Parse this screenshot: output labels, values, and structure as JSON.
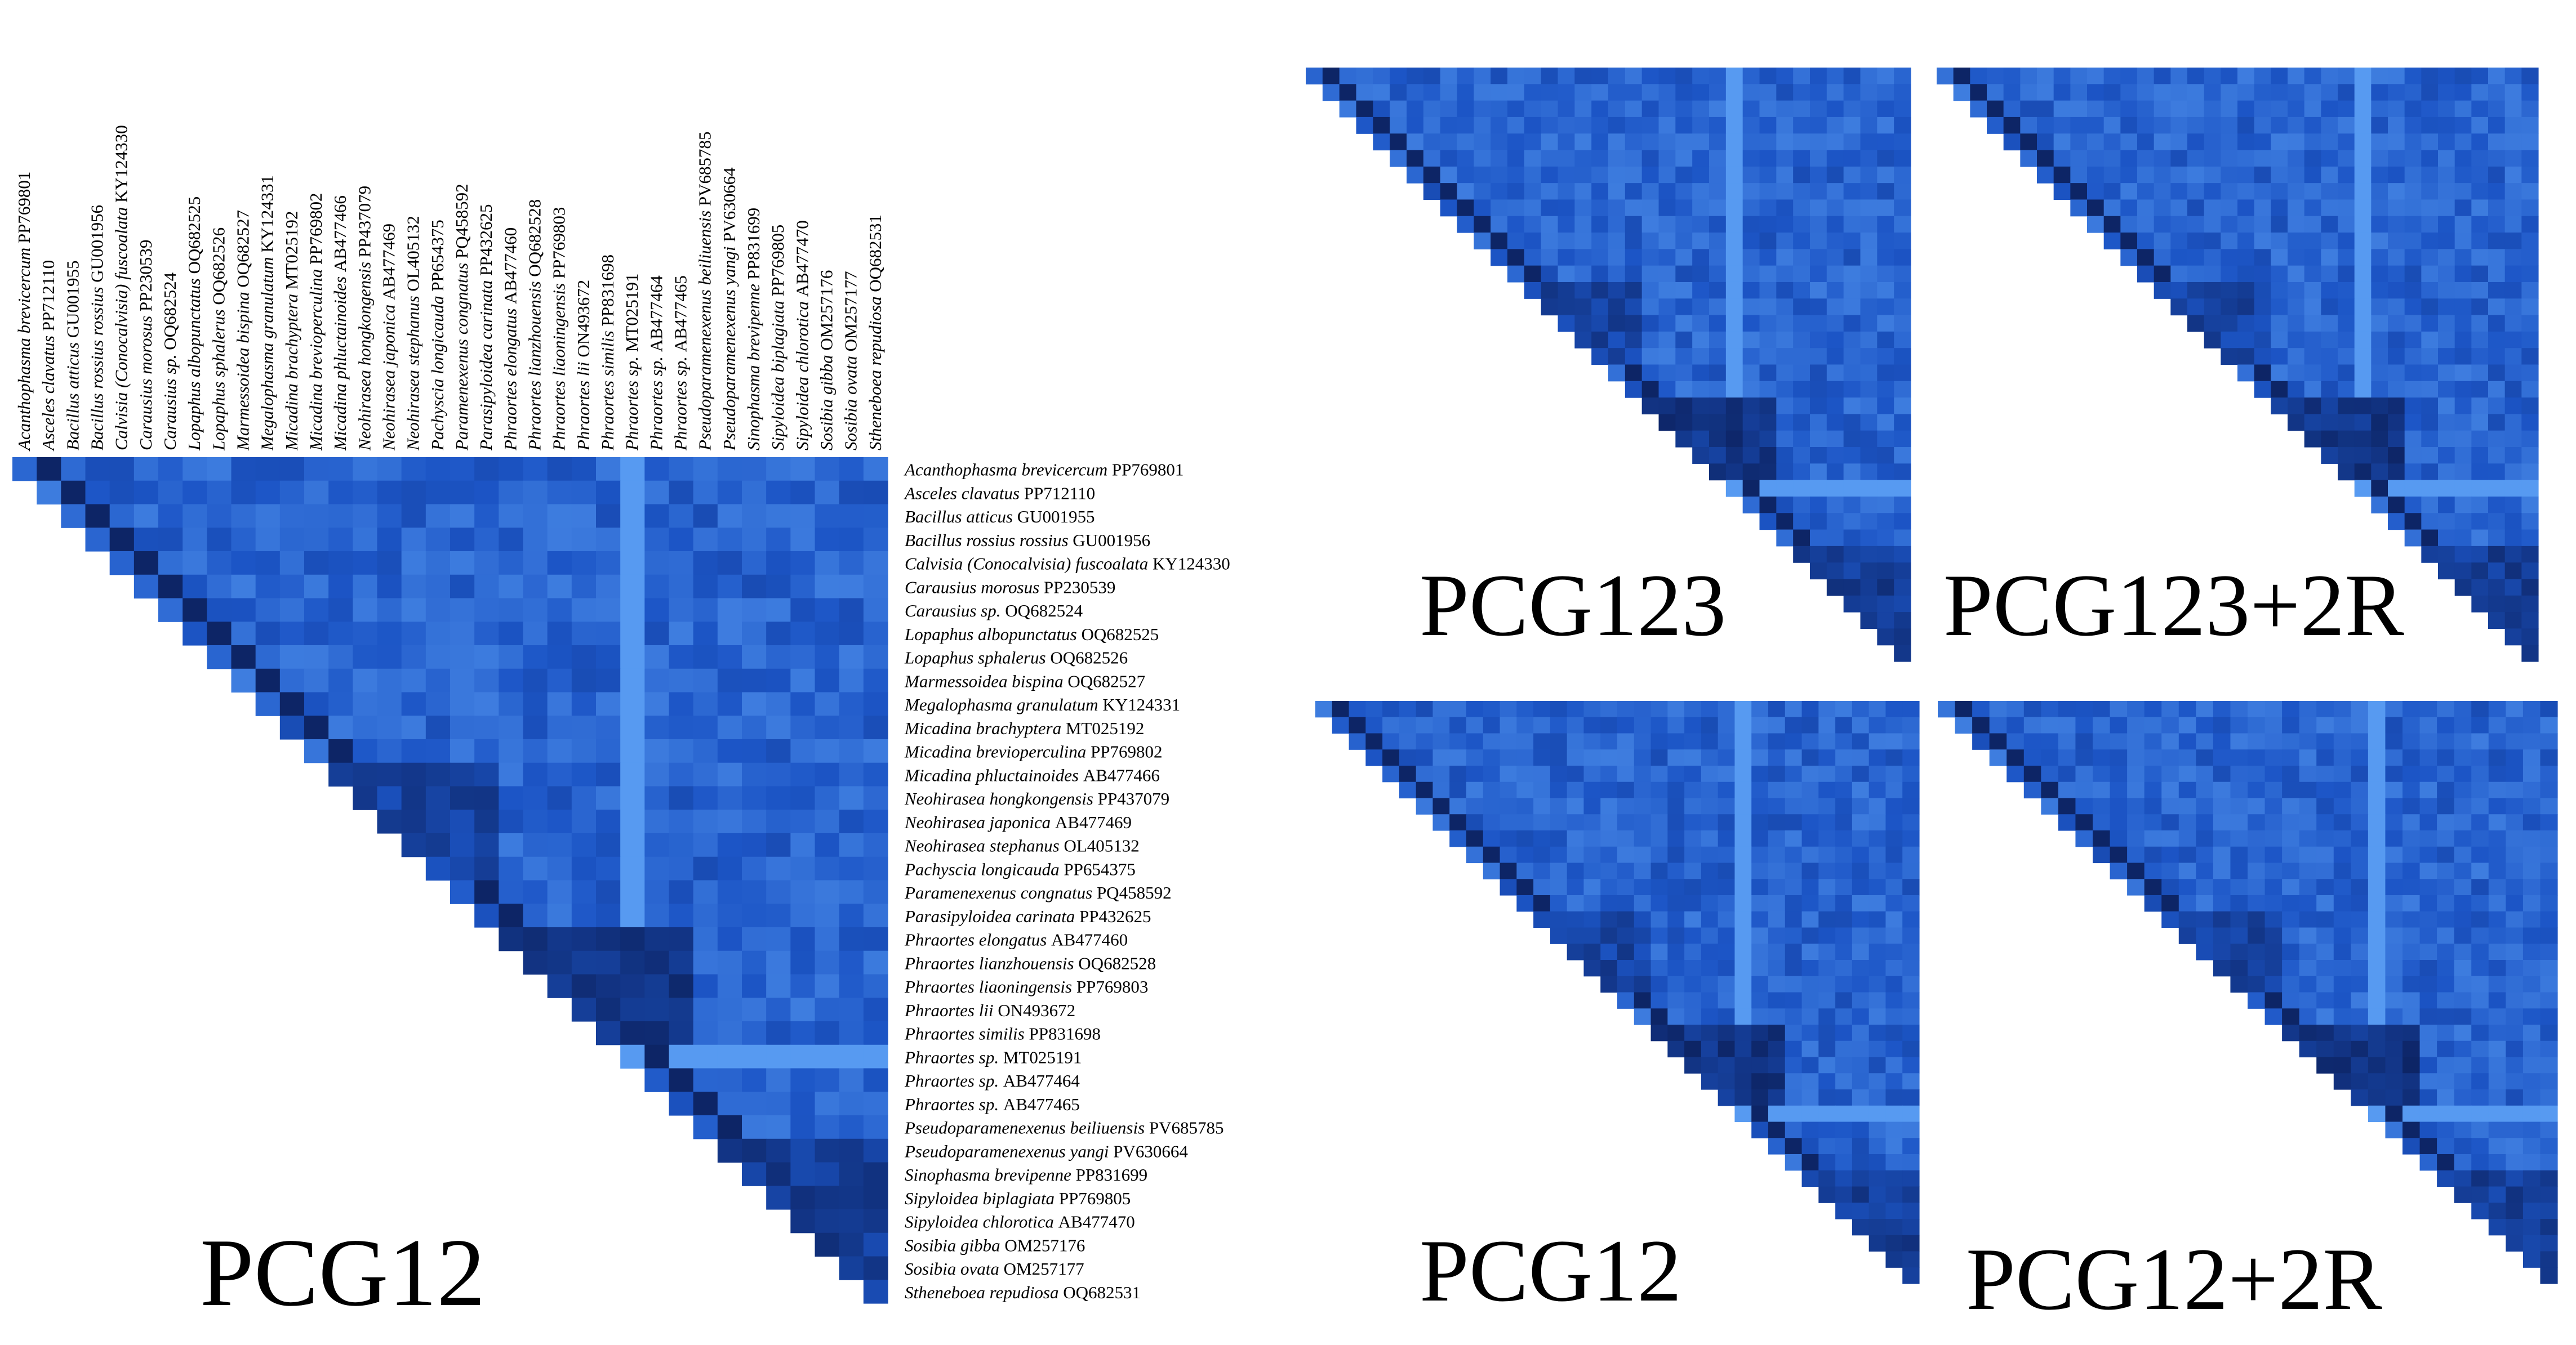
{
  "chart_data": [
    {
      "type": "heatmap",
      "label": "PCG12",
      "taxa": [
        {
          "name": "Acanthophasma brevicercum",
          "acc": "PP769801"
        },
        {
          "name": "Asceles clavatus",
          "acc": "PP712110"
        },
        {
          "name": "Bacillus atticus",
          "acc": "GU001955"
        },
        {
          "name": "Bacillus rossius rossius",
          "acc": "GU001956"
        },
        {
          "name": "Calvisia (Conocalvisia) fuscoalata",
          "acc": "KY124330"
        },
        {
          "name": "Carausius morosus",
          "acc": "PP230539"
        },
        {
          "name": "Carausius sp.",
          "acc": "OQ682524"
        },
        {
          "name": "Lopaphus albopunctatus",
          "acc": "OQ682525"
        },
        {
          "name": "Lopaphus sphalerus",
          "acc": "OQ682526"
        },
        {
          "name": "Marmessoidea bispina",
          "acc": "OQ682527"
        },
        {
          "name": "Megalophasma granulatum",
          "acc": "KY124331"
        },
        {
          "name": "Micadina brachyptera",
          "acc": "MT025192"
        },
        {
          "name": "Micadina brevioperculina",
          "acc": "PP769802"
        },
        {
          "name": "Micadina phluctainoides",
          "acc": "AB477466"
        },
        {
          "name": "Neohirasea hongkongensis",
          "acc": "PP437079"
        },
        {
          "name": "Neohirasea japonica",
          "acc": "AB477469"
        },
        {
          "name": "Neohirasea stephanus",
          "acc": "OL405132"
        },
        {
          "name": "Pachyscia longicauda",
          "acc": "PP654375"
        },
        {
          "name": "Paramenexenus congnatus",
          "acc": "PQ458592"
        },
        {
          "name": "Parasipyloidea carinata",
          "acc": "PP432625"
        },
        {
          "name": "Phraortes elongatus",
          "acc": "AB477460"
        },
        {
          "name": "Phraortes lianzhouensis",
          "acc": "OQ682528"
        },
        {
          "name": "Phraortes liaoningensis",
          "acc": "PP769803"
        },
        {
          "name": "Phraortes lii",
          "acc": "ON493672"
        },
        {
          "name": "Phraortes similis",
          "acc": "PP831698"
        },
        {
          "name": "Phraortes sp.",
          "acc": "MT025191"
        },
        {
          "name": "Phraortes sp.",
          "acc": "AB477464"
        },
        {
          "name": "Phraortes sp.",
          "acc": "AB477465"
        },
        {
          "name": "Pseudoparamenexenus beiliuensis",
          "acc": "PV685785"
        },
        {
          "name": "Pseudoparamenexenus yangi",
          "acc": "PV630664"
        },
        {
          "name": "Sinophasma brevipenne",
          "acc": "PP831699"
        },
        {
          "name": "Sipyloidea biplagiata",
          "acc": "PP769805"
        },
        {
          "name": "Sipyloidea chlorotica",
          "acc": "AB477470"
        },
        {
          "name": "Sosibia gibba",
          "acc": "OM257176"
        },
        {
          "name": "Sosibia ovata",
          "acc": "OM257177"
        },
        {
          "name": "Stheneboea repudiosa",
          "acc": "OQ682531"
        }
      ],
      "colors": {
        "low": "#6ab0ff",
        "mid": "#1c55c6",
        "high": "#050a30"
      }
    },
    {
      "type": "heatmap",
      "label": "PCG123"
    },
    {
      "type": "heatmap",
      "label": "PCG123+2R"
    },
    {
      "type": "heatmap",
      "label": "PCG12"
    },
    {
      "type": "heatmap",
      "label": "PCG12+2R"
    }
  ]
}
